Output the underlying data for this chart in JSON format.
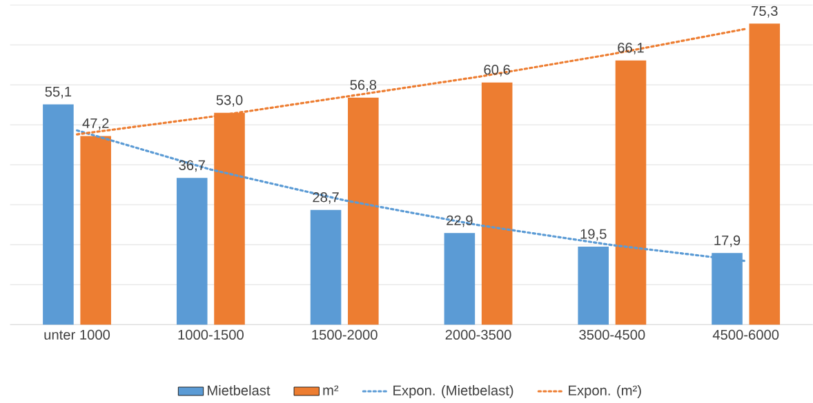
{
  "chart_data": {
    "type": "bar",
    "categories": [
      "unter 1000",
      "1000-1500",
      "1500-2000",
      "2000-3500",
      "3500-4500",
      "4500-6000"
    ],
    "series": [
      {
        "name": "Mietbelast",
        "color": "#5b9bd5",
        "values": [
          55.1,
          36.7,
          28.7,
          22.9,
          19.5,
          17.9
        ],
        "value_labels": [
          "55,1",
          "36,7",
          "28,7",
          "22,9",
          "19,5",
          "17,9"
        ]
      },
      {
        "name": "m²",
        "color": "#ed7d31",
        "values": [
          47.2,
          53.0,
          56.8,
          60.6,
          66.1,
          75.3
        ],
        "value_labels": [
          "47,2",
          "53,0",
          "56,8",
          "60,6",
          "66,1",
          "75,3"
        ]
      },
      {
        "name": "Expon. (Mietbelast)",
        "type": "line",
        "color": "#5b9bd5",
        "values": [
          48.6,
          38.8,
          31.1,
          24.9,
          19.9,
          15.9
        ]
      },
      {
        "name": "Expon. (m²)",
        "type": "line",
        "color": "#ed7d31",
        "values": [
          47.6,
          52.0,
          57.0,
          62.0,
          67.7,
          74.0
        ]
      }
    ],
    "ylim": [
      0,
      80
    ],
    "yticks": [
      {
        "value": 0,
        "label": null
      },
      {
        "value": 10,
        "label": null
      },
      {
        "value": 20,
        "label": null
      },
      {
        "value": 30,
        "label": null
      },
      {
        "value": 40,
        "label": null
      },
      {
        "value": 50,
        "label": null
      },
      {
        "value": 60,
        "label": null
      },
      {
        "value": 70,
        "label": null
      },
      {
        "value": 80,
        "label": null
      }
    ],
    "tick_labels": "x",
    "grid": "y",
    "legend": "bottom",
    "line_style": "dotted",
    "marker": "none"
  }
}
